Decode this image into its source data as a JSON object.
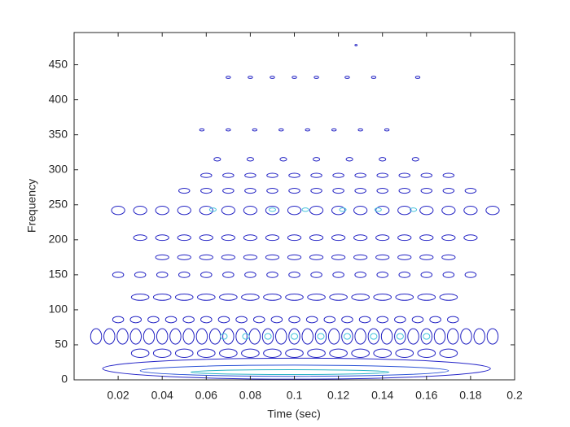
{
  "chart_data": {
    "type": "contour",
    "xlabel": "Time (sec)",
    "ylabel": "Frequency",
    "xlim": [
      0,
      0.2
    ],
    "ylim": [
      0,
      496
    ],
    "xticks": [
      0.02,
      0.04,
      0.06,
      0.08,
      0.1,
      0.12,
      0.14,
      0.16,
      0.18,
      0.2
    ],
    "yticks": [
      0,
      50,
      100,
      150,
      200,
      250,
      300,
      350,
      400,
      450
    ],
    "contours": [
      {
        "y": 16,
        "x": [
          0.101
        ],
        "width": 0.176,
        "height": 30,
        "color": "#2626c8"
      },
      {
        "y": 13,
        "x": [
          0.1
        ],
        "width": 0.14,
        "height": 16,
        "color": "#2a52d6"
      },
      {
        "y": 11,
        "x": [
          0.098
        ],
        "width": 0.09,
        "height": 7,
        "color": "#27b2c4"
      },
      {
        "y": 38,
        "x": [
          0.03,
          0.04,
          0.05,
          0.06,
          0.07,
          0.08,
          0.09,
          0.1,
          0.11,
          0.12,
          0.13,
          0.14,
          0.15,
          0.16,
          0.17
        ],
        "width": 0.008,
        "height": 12,
        "color": "#2424c4"
      },
      {
        "y": 62,
        "x": [
          0.01,
          0.016,
          0.022,
          0.028,
          0.034,
          0.04,
          0.046,
          0.052,
          0.058,
          0.064,
          0.07,
          0.076,
          0.082,
          0.088,
          0.094,
          0.1,
          0.106,
          0.112,
          0.118,
          0.124,
          0.13,
          0.136,
          0.142,
          0.148,
          0.154,
          0.16,
          0.166,
          0.172,
          0.178,
          0.184,
          0.19
        ],
        "width": 0.005,
        "height": 22,
        "color": "#2222c2"
      },
      {
        "y": 62,
        "x": [
          0.068,
          0.078,
          0.088,
          0.1,
          0.112,
          0.124,
          0.136,
          0.148,
          0.16
        ],
        "width": 0.003,
        "height": 8,
        "color": "#46c4dc"
      },
      {
        "y": 86,
        "x": [
          0.02,
          0.028,
          0.036,
          0.044,
          0.052,
          0.06,
          0.068,
          0.076,
          0.084,
          0.092,
          0.1,
          0.108,
          0.116,
          0.124,
          0.132,
          0.14,
          0.148,
          0.156,
          0.164,
          0.172
        ],
        "width": 0.005,
        "height": 9,
        "color": "#2424c4"
      },
      {
        "y": 118,
        "x": [
          0.03,
          0.04,
          0.05,
          0.06,
          0.07,
          0.08,
          0.09,
          0.1,
          0.11,
          0.12,
          0.13,
          0.14,
          0.15,
          0.16,
          0.17
        ],
        "width": 0.008,
        "height": 9,
        "color": "#2424c4"
      },
      {
        "y": 150,
        "x": [
          0.02,
          0.03,
          0.04,
          0.05,
          0.06,
          0.07,
          0.08,
          0.09,
          0.1,
          0.11,
          0.12,
          0.13,
          0.14,
          0.15,
          0.16,
          0.17,
          0.18
        ],
        "width": 0.005,
        "height": 8,
        "color": "#2424c4"
      },
      {
        "y": 175,
        "x": [
          0.04,
          0.05,
          0.06,
          0.07,
          0.08,
          0.09,
          0.1,
          0.11,
          0.12,
          0.13,
          0.14,
          0.15,
          0.16,
          0.17
        ],
        "width": 0.006,
        "height": 7,
        "color": "#2424c4"
      },
      {
        "y": 203,
        "x": [
          0.03,
          0.04,
          0.05,
          0.06,
          0.07,
          0.08,
          0.09,
          0.1,
          0.11,
          0.12,
          0.13,
          0.14,
          0.15,
          0.16,
          0.17,
          0.18
        ],
        "width": 0.006,
        "height": 8,
        "color": "#2424c4"
      },
      {
        "y": 242,
        "x": [
          0.02,
          0.03,
          0.04,
          0.05,
          0.06,
          0.07,
          0.08,
          0.09,
          0.1,
          0.11,
          0.12,
          0.13,
          0.14,
          0.15,
          0.16,
          0.17,
          0.18,
          0.19
        ],
        "width": 0.006,
        "height": 12,
        "color": "#2424c4"
      },
      {
        "y": 243,
        "x": [
          0.063,
          0.09,
          0.105,
          0.122,
          0.138,
          0.154
        ],
        "width": 0.003,
        "height": 5,
        "color": "#46c4dc"
      },
      {
        "y": 270,
        "x": [
          0.05,
          0.06,
          0.07,
          0.08,
          0.09,
          0.1,
          0.11,
          0.12,
          0.13,
          0.14,
          0.15,
          0.16,
          0.17,
          0.18
        ],
        "width": 0.005,
        "height": 7,
        "color": "#2424c4"
      },
      {
        "y": 292,
        "x": [
          0.06,
          0.07,
          0.08,
          0.09,
          0.1,
          0.11,
          0.12,
          0.13,
          0.14,
          0.15,
          0.16,
          0.17
        ],
        "width": 0.005,
        "height": 6,
        "color": "#2424c4"
      },
      {
        "y": 315,
        "x": [
          0.065,
          0.08,
          0.095,
          0.11,
          0.125,
          0.14,
          0.155
        ],
        "width": 0.003,
        "height": 5,
        "color": "#2424c4"
      },
      {
        "y": 357,
        "x": [
          0.058,
          0.07,
          0.082,
          0.094,
          0.106,
          0.118,
          0.13,
          0.142
        ],
        "width": 0.002,
        "height": 3,
        "color": "#2424c4"
      },
      {
        "y": 432,
        "x": [
          0.07,
          0.08,
          0.09,
          0.1,
          0.11,
          0.124,
          0.136,
          0.156
        ],
        "width": 0.002,
        "height": 3,
        "color": "#2424c4"
      },
      {
        "y": 478,
        "x": [
          0.128
        ],
        "width": 0.001,
        "height": 2,
        "color": "#2424c4"
      }
    ]
  }
}
